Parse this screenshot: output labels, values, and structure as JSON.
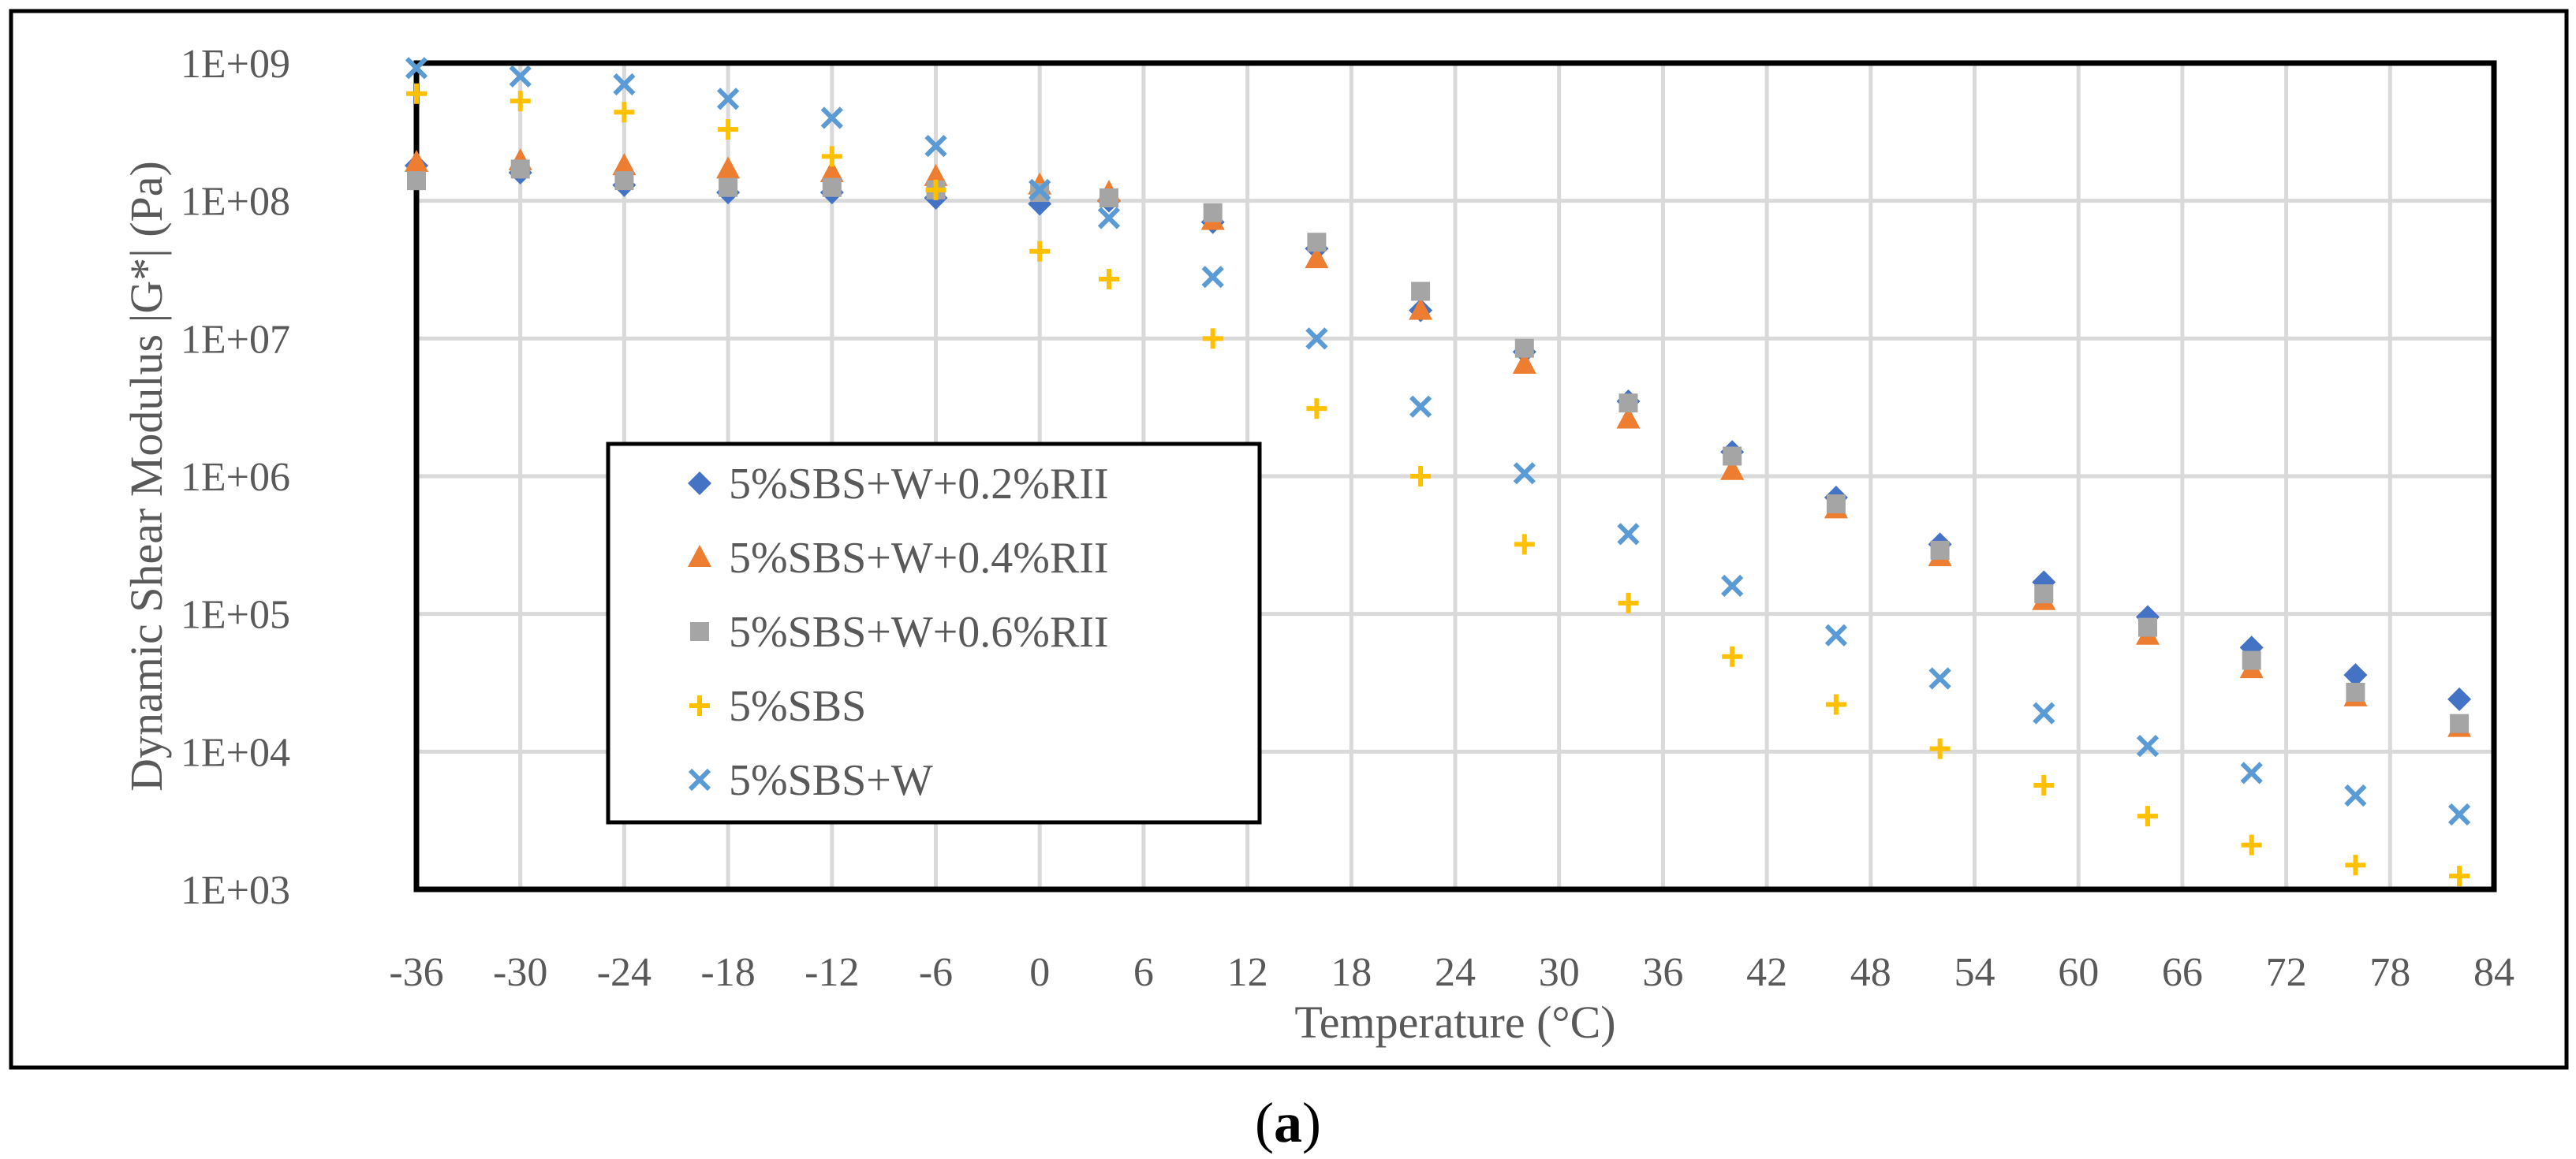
{
  "chart_data": {
    "type": "scatter",
    "title": "",
    "xlabel": "Temperature (°C)",
    "ylabel": "Dynamic Shear Modulus |G*| (Pa)",
    "caption_letter": "a",
    "caption_open": "(",
    "caption_close": ")",
    "xlim": [
      -36,
      84
    ],
    "ylim": [
      1000,
      1000000000
    ],
    "yscale": "log",
    "xticks": [
      -36,
      -30,
      -24,
      -18,
      -12,
      -6,
      0,
      6,
      12,
      18,
      24,
      30,
      36,
      42,
      48,
      54,
      60,
      66,
      72,
      78,
      84
    ],
    "xtick_labels": [
      "-36",
      "-30",
      "-24",
      "-18",
      "-12",
      "-6",
      "0",
      "6",
      "12",
      "18",
      "24",
      "30",
      "36",
      "42",
      "48",
      "54",
      "60",
      "66",
      "72",
      "78",
      "84"
    ],
    "yticks": [
      1000,
      10000,
      100000,
      1000000,
      10000000,
      100000000,
      1000000000
    ],
    "ytick_labels": [
      "1E+03",
      "1E+04",
      "1E+05",
      "1E+06",
      "1E+07",
      "1E+08",
      "1E+09"
    ],
    "grid": true,
    "legend_position": "center-left",
    "series": [
      {
        "name": "5%SBS+W+0.2%RII",
        "marker": "diamond",
        "color": "#4472C4",
        "x": [
          -36,
          -30,
          -24,
          -18,
          -12,
          -6,
          0,
          4,
          10,
          16,
          22,
          28,
          34,
          40,
          46,
          52,
          58,
          64,
          70,
          76,
          82
        ],
        "y": [
          180000000,
          160000000,
          130000000,
          115000000,
          115000000,
          105000000,
          95000000,
          100000000,
          70000000,
          45000000,
          16000000,
          8000000,
          3500000,
          1500000,
          700000,
          320000,
          170000,
          95000,
          57000,
          36000,
          24000
        ]
      },
      {
        "name": "5%SBS+W+0.4%RII",
        "marker": "triangle",
        "color": "#ED7D31",
        "x": [
          -36,
          -30,
          -24,
          -18,
          -12,
          -6,
          0,
          4,
          10,
          16,
          22,
          28,
          34,
          40,
          46,
          52,
          58,
          64,
          70,
          76,
          82
        ],
        "y": [
          190000000,
          195000000,
          180000000,
          170000000,
          160000000,
          150000000,
          130000000,
          115000000,
          72000000,
          38000000,
          16000000,
          6500000,
          2600000,
          1100000,
          580000,
          260000,
          125000,
          70000,
          40000,
          25000,
          15000
        ]
      },
      {
        "name": "5%SBS+W+0.6%RII",
        "marker": "square",
        "color": "#A5A5A5",
        "x": [
          -36,
          -30,
          -24,
          -18,
          -12,
          -6,
          0,
          4,
          10,
          16,
          22,
          28,
          34,
          40,
          46,
          52,
          58,
          64,
          70,
          76,
          82
        ],
        "y": [
          140000000,
          170000000,
          140000000,
          125000000,
          125000000,
          120000000,
          115000000,
          105000000,
          82000000,
          50000000,
          22000000,
          8500000,
          3400000,
          1400000,
          630000,
          290000,
          140000,
          80000,
          46000,
          27000,
          16000
        ]
      },
      {
        "name": "5%SBS",
        "marker": "plus",
        "color": "#FFC000",
        "x": [
          -36,
          -30,
          -24,
          -18,
          -12,
          -6,
          0,
          4,
          10,
          16,
          22,
          28,
          34,
          40,
          46,
          52,
          58,
          64,
          70,
          76,
          82
        ],
        "y": [
          600000000,
          530000000,
          440000000,
          330000000,
          210000000,
          120000000,
          43000000,
          27000000,
          10000000,
          3100000,
          1000000,
          320000,
          120000,
          49000,
          22000,
          10500,
          5700,
          3400,
          2100,
          1500,
          1250
        ]
      },
      {
        "name": "5%SBS+W",
        "marker": "x",
        "color": "#5B9BD5",
        "x": [
          -36,
          -30,
          -24,
          -18,
          -12,
          -6,
          0,
          4,
          10,
          16,
          22,
          28,
          34,
          40,
          46,
          52,
          58,
          64,
          70,
          76,
          82
        ],
        "y": [
          920000000,
          800000000,
          700000000,
          550000000,
          400000000,
          250000000,
          120000000,
          75000000,
          28000000,
          10000000,
          3200000,
          1050000,
          380000,
          160000,
          70000,
          34000,
          19000,
          11000,
          7000,
          4800,
          3500
        ]
      }
    ]
  }
}
